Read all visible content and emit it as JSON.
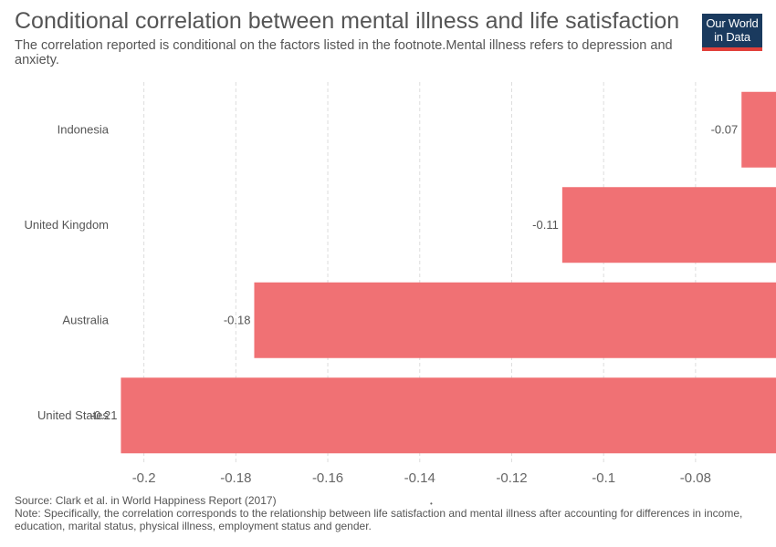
{
  "header": {
    "title": "Conditional correlation between mental illness and life satisfaction",
    "subtitle": "The correlation reported is conditional on the factors listed in the footnote.Mental illness refers to depression and anxiety.",
    "logo_line1": "Our World",
    "logo_line2": "in Data"
  },
  "footer": {
    "source": "Source: Clark et al. in World Happiness Report (2017)",
    "note": "Note: Specifically, the correlation corresponds to the relationship between life satisfaction and mental illness after accounting for differences in income, education, marital status, physical illness, employment status and gender."
  },
  "colors": {
    "bar": "#f07174",
    "grid": "#dddddd",
    "text": "#555555",
    "logo_bg": "#1a3a5e",
    "logo_accent": "#e1403a"
  },
  "chart_data": {
    "type": "bar",
    "orientation": "horizontal",
    "title": "Conditional correlation between mental illness and life satisfaction",
    "categories": [
      "Indonesia",
      "United Kingdom",
      "Australia",
      "United States"
    ],
    "values": [
      -0.07,
      -0.109,
      -0.176,
      -0.205
    ],
    "value_labels": [
      "-0.07",
      "-0.11",
      "-0.18",
      "-0.21"
    ],
    "xlim": [
      -0.2035,
      -0.0625
    ],
    "xticks": [
      -0.2,
      -0.18,
      -0.16,
      -0.14,
      -0.12,
      -0.1,
      -0.08
    ],
    "xtick_labels": [
      "-0.2",
      "-0.18",
      "-0.16",
      "-0.14",
      "-0.12",
      "-0.1",
      "-0.08"
    ],
    "grid": true
  }
}
